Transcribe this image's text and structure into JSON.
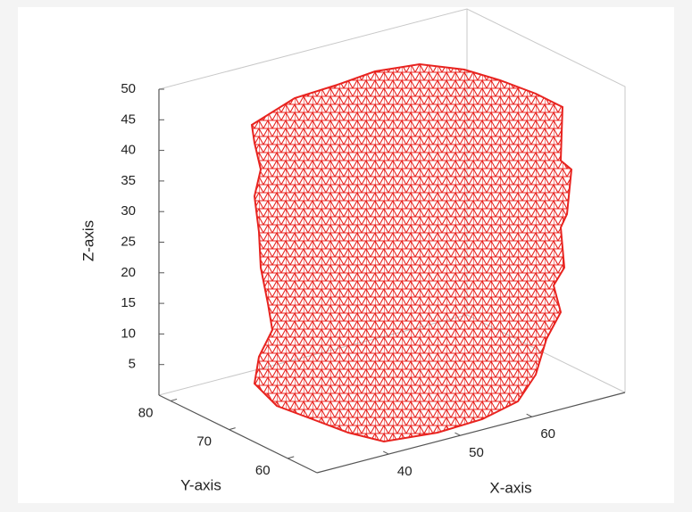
{
  "chart_data": {
    "type": "mesh3d",
    "xlabel": "X-axis",
    "ylabel": "Y-axis",
    "zlabel": "Z-axis",
    "xlim": [
      30,
      73
    ],
    "xticks": [
      40,
      50,
      60
    ],
    "ylim": [
      55,
      82
    ],
    "yticks": [
      60,
      70,
      80
    ],
    "zlim": [
      0,
      50
    ],
    "zticks": [
      5,
      10,
      15,
      20,
      25,
      30,
      35,
      40,
      45,
      50
    ],
    "color": "#e8231f"
  }
}
